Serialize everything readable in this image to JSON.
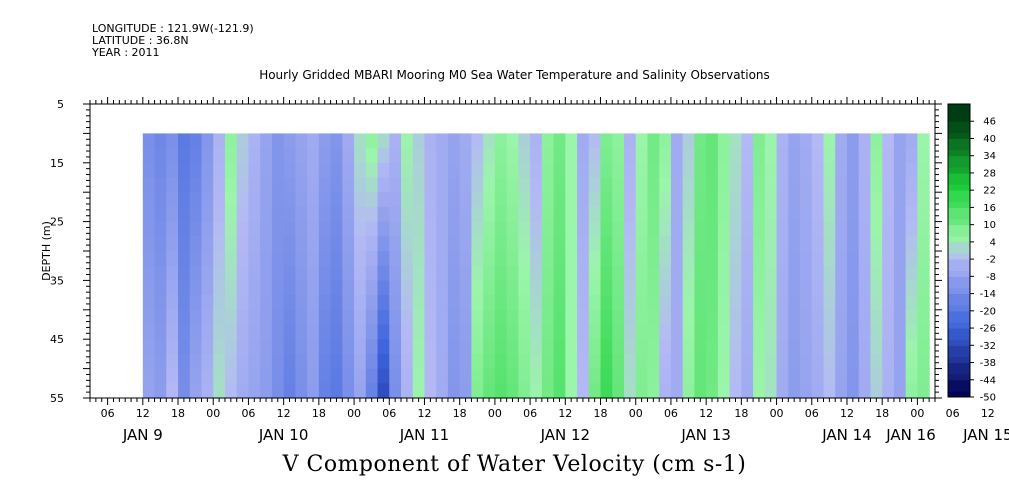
{
  "header": {
    "longitude": "LONGITUDE : 121.9W(-121.9)",
    "latitude": "LATITUDE : 36.8N",
    "year": "YEAR : 2011"
  },
  "chart_data": {
    "type": "heatmap",
    "title": "Hourly Gridded MBARI Mooring M0 Sea Water Temperature and Salinity Observations",
    "bottom_title": "V Component of Water Velocity (cm s-1)",
    "ylabel": "DEPTH (m)",
    "xlabel": "",
    "y_reversed": true,
    "ylim": [
      5,
      55
    ],
    "xlim_hours": [
      3,
      147
    ],
    "yticks": [
      5,
      15,
      25,
      35,
      45,
      55
    ],
    "hour_tick_labels": [
      "06",
      "12",
      "18",
      "00",
      "06",
      "12",
      "18",
      "00",
      "06",
      "12",
      "18",
      "00",
      "06",
      "12",
      "18",
      "00",
      "06",
      "12",
      "18",
      "00",
      "06",
      "12",
      "18",
      "00",
      "06",
      "12",
      "18",
      "00",
      "06",
      "12",
      "18",
      "00",
      "06"
    ],
    "date_labels": [
      "JAN  9",
      "JAN 10",
      "JAN 11",
      "JAN 12",
      "JAN 13",
      "JAN 14",
      "JAN 15",
      "JAN 16"
    ],
    "data_extent": {
      "hours": [
        12,
        144
      ],
      "depth": [
        10,
        55
      ]
    },
    "colorbar": {
      "levels": [
        -50,
        -44,
        -38,
        -32,
        -26,
        -20,
        -14,
        -8,
        -2,
        4,
        10,
        16,
        22,
        28,
        34,
        40,
        46
      ],
      "ticks": [
        -50,
        -44,
        -38,
        -32,
        -26,
        -20,
        -14,
        -8,
        -2,
        4,
        10,
        16,
        22,
        28,
        34,
        40,
        46
      ]
    },
    "colors": {
      "negative_strong": "#000050",
      "negative_mid": "#3c64dc",
      "negative_weak": "#b4b9f5",
      "positive_weak": "#9bf5aa",
      "positive_mid": "#1ed23c",
      "positive_strong": "#003c14"
    },
    "columns": [
      {
        "hour": 12,
        "surface": -14,
        "bottom": -8
      },
      {
        "hour": 14,
        "surface": -16,
        "bottom": -10
      },
      {
        "hour": 16,
        "surface": -14,
        "bottom": -2
      },
      {
        "hour": 18,
        "surface": -20,
        "bottom": -14
      },
      {
        "hour": 20,
        "surface": -18,
        "bottom": -8
      },
      {
        "hour": 22,
        "surface": -12,
        "bottom": -4
      },
      {
        "hour": 24,
        "surface": -4,
        "bottom": 2
      },
      {
        "hour": 26,
        "surface": 6,
        "bottom": -2
      },
      {
        "hour": 28,
        "surface": 0,
        "bottom": -6
      },
      {
        "hour": 30,
        "surface": -4,
        "bottom": -8
      },
      {
        "hour": 32,
        "surface": -8,
        "bottom": -10
      },
      {
        "hour": 34,
        "surface": -12,
        "bottom": -14
      },
      {
        "hour": 36,
        "surface": -10,
        "bottom": -18
      },
      {
        "hour": 38,
        "surface": -8,
        "bottom": -14
      },
      {
        "hour": 40,
        "surface": -6,
        "bottom": -10
      },
      {
        "hour": 42,
        "surface": -10,
        "bottom": -18
      },
      {
        "hour": 44,
        "surface": -12,
        "bottom": -20
      },
      {
        "hour": 46,
        "surface": -6,
        "bottom": -14
      },
      {
        "hour": 48,
        "surface": 2,
        "bottom": -8
      },
      {
        "hour": 50,
        "surface": 6,
        "bottom": -18
      },
      {
        "hour": 52,
        "surface": 2,
        "bottom": -32
      },
      {
        "hour": 54,
        "surface": -4,
        "bottom": -14
      },
      {
        "hour": 56,
        "surface": 4,
        "bottom": -4
      },
      {
        "hour": 58,
        "surface": 0,
        "bottom": 4
      },
      {
        "hour": 60,
        "surface": -4,
        "bottom": -2
      },
      {
        "hour": 62,
        "surface": -6,
        "bottom": -6
      },
      {
        "hour": 64,
        "surface": -8,
        "bottom": -12
      },
      {
        "hour": 66,
        "surface": -6,
        "bottom": -10
      },
      {
        "hour": 68,
        "surface": -2,
        "bottom": 8
      },
      {
        "hour": 70,
        "surface": 2,
        "bottom": 12
      },
      {
        "hour": 72,
        "surface": 6,
        "bottom": 14
      },
      {
        "hour": 74,
        "surface": 4,
        "bottom": 12
      },
      {
        "hour": 76,
        "surface": 0,
        "bottom": 8
      },
      {
        "hour": 78,
        "surface": -4,
        "bottom": 4
      },
      {
        "hour": 80,
        "surface": 6,
        "bottom": 10
      },
      {
        "hour": 82,
        "surface": 10,
        "bottom": 14
      },
      {
        "hour": 84,
        "surface": 4,
        "bottom": 4
      },
      {
        "hour": 86,
        "surface": -6,
        "bottom": -2
      },
      {
        "hour": 88,
        "surface": -2,
        "bottom": 10
      },
      {
        "hour": 90,
        "surface": 8,
        "bottom": 18
      },
      {
        "hour": 92,
        "surface": 6,
        "bottom": 12
      },
      {
        "hour": 94,
        "surface": -4,
        "bottom": 2
      },
      {
        "hour": 96,
        "surface": 4,
        "bottom": 8
      },
      {
        "hour": 98,
        "surface": 10,
        "bottom": 6
      },
      {
        "hour": 100,
        "surface": 6,
        "bottom": -4
      },
      {
        "hour": 102,
        "surface": -6,
        "bottom": -6
      },
      {
        "hour": 104,
        "surface": 0,
        "bottom": 6
      },
      {
        "hour": 106,
        "surface": 10,
        "bottom": 12
      },
      {
        "hour": 108,
        "surface": 12,
        "bottom": 10
      },
      {
        "hour": 110,
        "surface": 6,
        "bottom": 4
      },
      {
        "hour": 112,
        "surface": 2,
        "bottom": -2
      },
      {
        "hour": 114,
        "surface": -2,
        "bottom": -6
      },
      {
        "hour": 116,
        "surface": 8,
        "bottom": 4
      },
      {
        "hour": 118,
        "surface": 4,
        "bottom": 2
      },
      {
        "hour": 120,
        "surface": -4,
        "bottom": -6
      },
      {
        "hour": 122,
        "surface": -8,
        "bottom": -10
      },
      {
        "hour": 124,
        "surface": -6,
        "bottom": -8
      },
      {
        "hour": 126,
        "surface": -2,
        "bottom": -6
      },
      {
        "hour": 128,
        "surface": 4,
        "bottom": -2
      },
      {
        "hour": 130,
        "surface": -6,
        "bottom": -8
      },
      {
        "hour": 132,
        "surface": -10,
        "bottom": -12
      },
      {
        "hour": 134,
        "surface": -4,
        "bottom": -6
      },
      {
        "hour": 136,
        "surface": 6,
        "bottom": 0
      },
      {
        "hour": 138,
        "surface": -2,
        "bottom": -4
      },
      {
        "hour": 140,
        "surface": -8,
        "bottom": -8
      },
      {
        "hour": 142,
        "surface": -6,
        "bottom": 6
      },
      {
        "hour": 144,
        "surface": 4,
        "bottom": 8
      }
    ]
  }
}
